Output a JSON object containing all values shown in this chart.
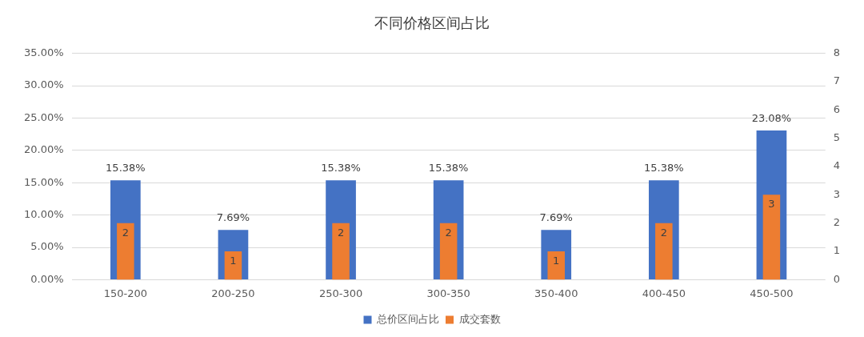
{
  "chart_data": {
    "type": "bar",
    "title": "不同价格区间占比",
    "categories": [
      "150-200",
      "200-250",
      "250-300",
      "300-350",
      "350-400",
      "400-450",
      "450-500"
    ],
    "series": [
      {
        "name": "总价区间占比",
        "color": "#4472c4",
        "values": [
          15.38,
          7.69,
          15.38,
          15.38,
          7.69,
          15.38,
          23.08
        ],
        "value_labels": [
          "15.38%",
          "7.69%",
          "15.38%",
          "15.38%",
          "7.69%",
          "15.38%",
          "23.08%"
        ]
      },
      {
        "name": "成交套数",
        "color": "#ed7d31",
        "axis": "y2",
        "values": [
          2,
          1,
          2,
          2,
          1,
          2,
          3
        ],
        "value_labels": [
          "2",
          "1",
          "2",
          "2",
          "1",
          "2",
          "3"
        ]
      }
    ],
    "ylim": [
      0,
      35
    ],
    "yticks": [
      {
        "value": 0,
        "label": "0.00%"
      },
      {
        "value": 5,
        "label": "5.00%"
      },
      {
        "value": 10,
        "label": "10.00%"
      },
      {
        "value": 15,
        "label": "15.00%"
      },
      {
        "value": 20,
        "label": "20.00%"
      },
      {
        "value": 25,
        "label": "25.00%"
      },
      {
        "value": 30,
        "label": "30.00%"
      },
      {
        "value": 35,
        "label": "35.00%"
      }
    ],
    "y2lim": [
      0,
      8
    ],
    "y2ticks": [
      0,
      1,
      2,
      3,
      4,
      5,
      6,
      7,
      8
    ],
    "grid": "y",
    "legend": "bottom"
  }
}
